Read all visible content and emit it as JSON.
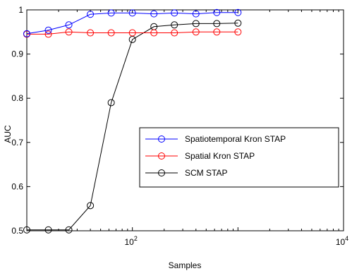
{
  "chart_data": {
    "type": "line",
    "xlabel": "Samples",
    "ylabel": "AUC",
    "xscale": "log",
    "xlim": [
      10,
      10000
    ],
    "ylim": [
      0.5,
      1.0
    ],
    "grid": false,
    "legend_position": "center-right",
    "x_ticks": [
      {
        "value": 100,
        "base": "10",
        "exp": "2"
      },
      {
        "value": 10000,
        "base": "10",
        "exp": "4"
      }
    ],
    "y_ticks": [
      {
        "value": 0.5,
        "label": "0.5"
      },
      {
        "value": 0.6,
        "label": "0.6"
      },
      {
        "value": 0.7,
        "label": "0.7"
      },
      {
        "value": 0.8,
        "label": "0.8"
      },
      {
        "value": 0.9,
        "label": "0.9"
      },
      {
        "value": 1.0,
        "label": "1"
      }
    ],
    "x": [
      10,
      16,
      25,
      40,
      63,
      100,
      160,
      250,
      400,
      630,
      1000
    ],
    "series": [
      {
        "name": "Spatiotemporal Kron STAP",
        "color": "#0000ff",
        "marker": "circle",
        "values": [
          0.946,
          0.954,
          0.966,
          0.99,
          0.993,
          0.993,
          0.991,
          0.993,
          0.991,
          0.994,
          0.994
        ]
      },
      {
        "name": "Spatial Kron STAP",
        "color": "#ff0000",
        "marker": "circle",
        "values": [
          0.945,
          0.945,
          0.95,
          0.948,
          0.948,
          0.948,
          0.948,
          0.948,
          0.95,
          0.95,
          0.95
        ]
      },
      {
        "name": "SCM STAP",
        "color": "#000000",
        "marker": "circle",
        "values": [
          0.502,
          0.502,
          0.502,
          0.557,
          0.79,
          0.933,
          0.962,
          0.966,
          0.969,
          0.969,
          0.97
        ]
      }
    ]
  }
}
